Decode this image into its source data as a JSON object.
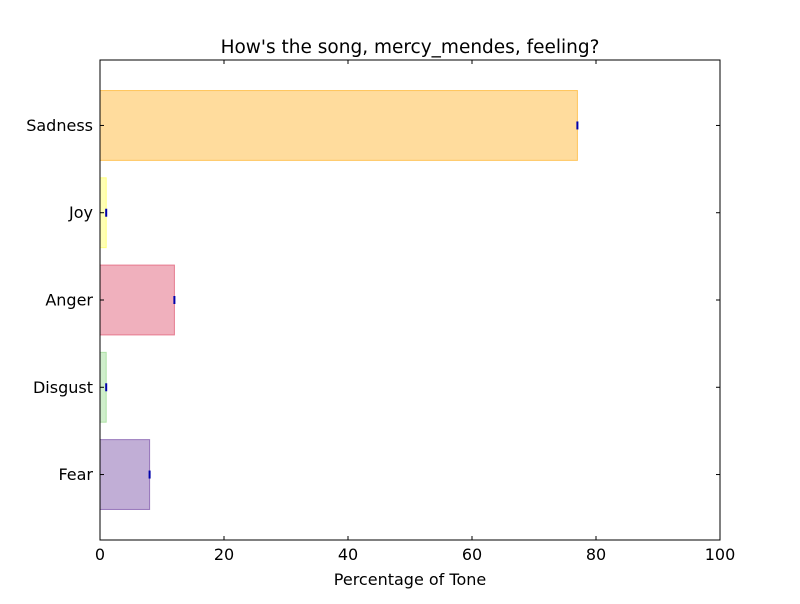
{
  "chart_data": {
    "type": "bar",
    "orientation": "horizontal",
    "title": "How's the song, mercy_mendes, feeling?",
    "xlabel": "Percentage of Tone",
    "ylabel": "",
    "xlim": [
      0,
      100
    ],
    "xticks": [
      0,
      20,
      40,
      60,
      80,
      100
    ],
    "grid": false,
    "legend": "none",
    "categories": [
      "Fear",
      "Disgust",
      "Anger",
      "Joy",
      "Sadness"
    ],
    "values": [
      8,
      1,
      12,
      1,
      77
    ],
    "colors": [
      "#8e6bb5",
      "#a8e0a0",
      "#e47086",
      "#ffff77",
      "#ffc04c"
    ],
    "error_marker_color": "#0000aa"
  }
}
